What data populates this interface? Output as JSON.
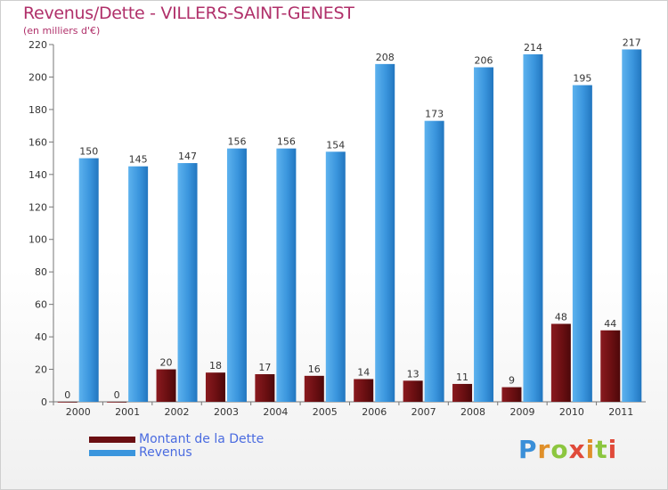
{
  "title": "Revenus/Dette - VILLERS-SAINT-GENEST",
  "subtitle": "(en milliers d'€)",
  "colors": {
    "dette": "#6b0f12",
    "revenus": "#3a95dd",
    "axis_text": "#333333",
    "title": "#b0306a"
  },
  "legend": {
    "dette_label": "Montant de la Dette",
    "revenus_label": "Revenus"
  },
  "logo": {
    "text": "Proxiti"
  },
  "chart_data": {
    "type": "bar",
    "title": "Revenus/Dette - VILLERS-SAINT-GENEST",
    "subtitle": "(en milliers d'€)",
    "xlabel": "",
    "ylabel": "",
    "ylim": [
      0,
      220
    ],
    "yticks": [
      0,
      20,
      40,
      60,
      80,
      100,
      120,
      140,
      160,
      180,
      200,
      220
    ],
    "grid": false,
    "legend_position": "bottom-left",
    "categories": [
      "2000",
      "2001",
      "2002",
      "2003",
      "2004",
      "2005",
      "2006",
      "2007",
      "2008",
      "2009",
      "2010",
      "2011"
    ],
    "series": [
      {
        "name": "Montant de la Dette",
        "values": [
          0,
          0,
          20,
          18,
          17,
          16,
          14,
          13,
          11,
          9,
          48,
          44
        ]
      },
      {
        "name": "Revenus",
        "values": [
          150,
          145,
          147,
          156,
          156,
          154,
          208,
          173,
          206,
          214,
          195,
          217
        ]
      }
    ]
  }
}
